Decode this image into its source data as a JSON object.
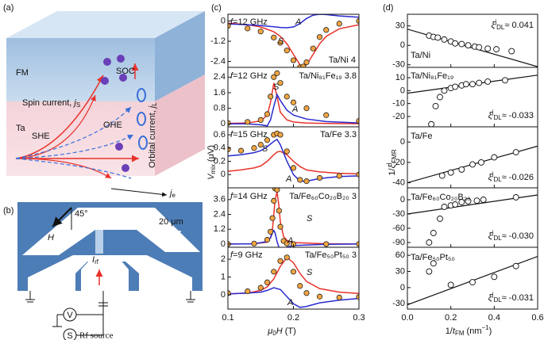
{
  "panel_a": {
    "label": "(a)",
    "fm": "FM",
    "ta": "Ta",
    "soc": "SOC",
    "spin_current": [
      "Spin current, ",
      "j",
      "S"
    ],
    "she": "SHE",
    "ohe": "OHE",
    "orbital_current": [
      "Orbital current, ",
      "j",
      "L"
    ],
    "je": [
      "j",
      "e"
    ]
  },
  "panel_b": {
    "label": "(b)",
    "angle": "45°",
    "field": "H",
    "scale": "20 μm",
    "current": [
      "I",
      "rf"
    ],
    "voltmeter": "V",
    "source_symbol": "S",
    "source": "Rf source"
  },
  "panel_c": {
    "label": "(c)",
    "ylabel": [
      "V",
      "mix",
      " (μV)"
    ],
    "xlabel": [
      "μ",
      "0",
      "H",
      " (T)"
    ]
  },
  "panel_d": {
    "label": "(d)",
    "ylabel": [
      "1/",
      "ξ",
      "j",
      "FMR"
    ],
    "xlabel": [
      "1/",
      "t",
      "FM",
      " (nm",
      "−1",
      ")"
    ]
  },
  "chart_data": [
    {
      "type": "line",
      "title": "Ta/Ni 4",
      "frequency": [
        "f",
        "=12 GHz"
      ],
      "xlim": [
        0.1,
        0.3
      ],
      "xticks": [
        0.1,
        0.2,
        0.3
      ],
      "ylim": [
        -2.75,
        0.4
      ],
      "yticks": [
        0,
        -1.2,
        -2.4
      ],
      "x": [
        0.1,
        0.13,
        0.15,
        0.17,
        0.18,
        0.19,
        0.2,
        0.21,
        0.215,
        0.22,
        0.23,
        0.24,
        0.25,
        0.27,
        0.3
      ],
      "series": [
        {
          "name": "S",
          "color": "#e8322a",
          "values": [
            -0.12,
            -0.22,
            -0.35,
            -0.64,
            -0.91,
            -1.35,
            -1.98,
            -2.6,
            -2.7,
            -2.6,
            -1.98,
            -1.35,
            -0.91,
            -0.46,
            -0.22
          ]
        },
        {
          "name": "A",
          "color": "#2a2ad0",
          "values": [
            -0.17,
            -0.22,
            -0.27,
            -0.34,
            -0.38,
            -0.4,
            -0.35,
            -0.15,
            0,
            0.15,
            0.35,
            0.4,
            0.38,
            0.3,
            0.22
          ]
        },
        {
          "color": "#f2a541",
          "marker": "circle",
          "values": [
            -0.29,
            -0.44,
            -0.62,
            -0.98,
            -1.29,
            -1.75,
            -2.33,
            -2.75,
            -2.7,
            -2.45,
            -1.63,
            -0.95,
            -0.53,
            -0.16,
            0
          ]
        }
      ]
    },
    {
      "type": "line",
      "title": "Ta/Ni₈₁Fe₁₉ 3.8",
      "frequency": [
        "f",
        "=12 GHz"
      ],
      "xlim": [
        0.1,
        0.3
      ],
      "xticks": [
        0.1,
        0.2,
        0.3
      ],
      "ylim": [
        -0.15,
        2.9
      ],
      "yticks": [
        0,
        0.8,
        1.6,
        2.4
      ],
      "x": [
        0.1,
        0.13,
        0.15,
        0.16,
        0.165,
        0.17,
        0.175,
        0.18,
        0.19,
        0.2,
        0.22,
        0.25,
        0.3
      ],
      "series": [
        {
          "name": "S",
          "color": "#e8322a",
          "values": [
            0.02,
            0.05,
            0.15,
            0.45,
            1.1,
            2.1,
            1.4,
            0.6,
            0.2,
            0.1,
            0.04,
            0.02,
            0.01
          ]
        },
        {
          "name": "A",
          "color": "#2a2ad0",
          "values": [
            0,
            0,
            -0.05,
            -0.1,
            0.2,
            0.9,
            1.5,
            1.2,
            0.7,
            0.45,
            0.25,
            0.12,
            0.05
          ]
        },
        {
          "color": "#f2a541",
          "marker": "circle",
          "values": [
            0.05,
            0.1,
            0.2,
            0.5,
            1.4,
            2.4,
            2.6,
            2.1,
            1.4,
            1.1,
            0.8,
            0.45,
            0.15
          ]
        }
      ]
    },
    {
      "type": "line",
      "title": "Ta/Fe 3.3",
      "frequency": [
        "f",
        "=15 GHz"
      ],
      "xlim": [
        0.1,
        0.3
      ],
      "xticks": [
        0.1,
        0.2,
        0.3
      ],
      "ylim": [
        -0.2,
        0.72
      ],
      "yticks": [
        0,
        0.2,
        0.4,
        0.6
      ],
      "x": [
        0.1,
        0.12,
        0.14,
        0.15,
        0.16,
        0.17,
        0.175,
        0.18,
        0.19,
        0.2,
        0.21,
        0.22,
        0.24,
        0.27,
        0.3
      ],
      "series": [
        {
          "name": "S",
          "color": "#e8322a",
          "values": [
            0.05,
            0.07,
            0.1,
            0.13,
            0.2,
            0.3,
            0.34,
            0.35,
            0.3,
            0.2,
            0.12,
            0.07,
            0.04,
            0.02,
            0.01
          ]
        },
        {
          "name": "A",
          "color": "#2a2ad0",
          "values": [
            0.28,
            0.3,
            0.33,
            0.36,
            0.42,
            0.5,
            0.53,
            0.45,
            0.2,
            0,
            -0.1,
            -0.1,
            -0.06,
            -0.03,
            -0.02
          ]
        },
        {
          "color": "#f2a541",
          "marker": "circle",
          "values": [
            0.38,
            0.36,
            0.4,
            0.45,
            0.52,
            0.6,
            0.62,
            0.6,
            0.35,
            0.1,
            -0.08,
            -0.1,
            -0.05,
            -0.02,
            0
          ]
        }
      ]
    },
    {
      "type": "line",
      "title": "Ta/Fe₆₀Co₂₀B₂₀ 3",
      "frequency": [
        "f",
        "=14 GHz"
      ],
      "xlim": [
        0.1,
        0.3
      ],
      "xticks": [
        0.1,
        0.2,
        0.3
      ],
      "ylim": [
        -0.26,
        4.55
      ],
      "yticks": [
        0,
        1.2,
        2.4,
        3.6
      ],
      "x": [
        0.1,
        0.14,
        0.16,
        0.165,
        0.168,
        0.17,
        0.172,
        0.175,
        0.178,
        0.18,
        0.185,
        0.19,
        0.2,
        0.25,
        0.3
      ],
      "series": [
        {
          "name": "S",
          "color": "#e8322a",
          "values": [
            0,
            0.02,
            0.15,
            0.5,
            1.2,
            2.4,
            3.6,
            4.2,
            3,
            1.8,
            0.6,
            0.3,
            0.12,
            0.02,
            0.01
          ]
        },
        {
          "name": "A",
          "color": "#2a2ad0",
          "values": [
            0,
            0.02,
            0.2,
            0.5,
            0.9,
            1.1,
            0.9,
            0.2,
            -0.3,
            -0.4,
            -0.35,
            -0.25,
            -0.12,
            -0.02,
            0
          ]
        },
        {
          "color": "#f2a541",
          "marker": "circle",
          "values": [
            0,
            0.04,
            0.35,
            1,
            2.1,
            3.5,
            4.5,
            4.4,
            2.7,
            1.4,
            0.25,
            0.05,
            0,
            0,
            0.01
          ]
        }
      ]
    },
    {
      "type": "line",
      "title": "Ta/Fe₅₀Pt₅₀ 3",
      "frequency": [
        "f",
        "=9 GHz"
      ],
      "xlim": [
        0.1,
        0.3
      ],
      "xticks": [
        0.1,
        0.2,
        0.3
      ],
      "ylim": [
        -0.8,
        2.67
      ],
      "yticks": [
        0,
        1,
        2
      ],
      "x": [
        0.1,
        0.13,
        0.15,
        0.16,
        0.17,
        0.18,
        0.19,
        0.2,
        0.21,
        0.22,
        0.24,
        0.27,
        0.3
      ],
      "series": [
        {
          "name": "S",
          "color": "#e8322a",
          "values": [
            0.05,
            0.1,
            0.25,
            0.45,
            0.9,
            1.6,
            2.1,
            1.8,
            1.2,
            0.75,
            0.35,
            0.15,
            0.08
          ]
        },
        {
          "name": "A",
          "color": "#2a2ad0",
          "values": [
            0.05,
            0.1,
            0.15,
            0.25,
            0.4,
            0.3,
            -0.1,
            -0.5,
            -0.7,
            -0.65,
            -0.45,
            -0.3,
            -0.2
          ]
        },
        {
          "color": "#f2a541",
          "marker": "circle",
          "values": [
            0.1,
            0.2,
            0.4,
            0.7,
            1.3,
            1.9,
            2.1,
            1.3,
            0.5,
            0.1,
            -0.1,
            -0.15,
            -0.12
          ]
        }
      ]
    },
    {
      "type": "scatter",
      "title": "Ta/Ni",
      "annotation": [
        "ξ",
        "j",
        "DL",
        "≈ 0.041"
      ],
      "xlim": [
        0,
        0.6
      ],
      "xticks": [
        {
          "value": 0,
          "label": "0.0"
        },
        0.2,
        0.4,
        0.6
      ],
      "ylim": [
        -34,
        48
      ],
      "yticks": [
        30,
        0,
        -30
      ],
      "x": [
        0.1,
        0.12,
        0.14,
        0.17,
        0.2,
        0.22,
        0.25,
        0.28,
        0.31,
        0.33,
        0.37,
        0.41,
        0.48
      ],
      "values": [
        15,
        13,
        12,
        9,
        6,
        3,
        2,
        0,
        -2,
        -3,
        -5,
        -6,
        -9
      ],
      "fit": {
        "x": [
          0,
          0.6
        ],
        "values": [
          25,
          -33
        ]
      }
    },
    {
      "type": "scatter",
      "title": "Ta/Ni₈₁Fe₁₉",
      "annotation": [
        "ξ",
        "j",
        "DL",
        "≈ -0.033"
      ],
      "xlim": [
        0,
        0.6
      ],
      "xticks": [
        {
          "value": 0,
          "label": "0.0"
        },
        0.2,
        0.4,
        0.6
      ],
      "ylim": [
        -28,
        18
      ],
      "yticks": [
        10,
        0,
        -10,
        -20
      ],
      "x": [
        0.11,
        0.13,
        0.15,
        0.17,
        0.2,
        0.22,
        0.25,
        0.27,
        0.3,
        0.33,
        0.37,
        0.45
      ],
      "values": [
        -26,
        -12,
        -5,
        0,
        2,
        3,
        4,
        5,
        5,
        6,
        7,
        8
      ],
      "fit": {
        "x": [
          0,
          0.6
        ],
        "values": [
          -2,
          12
        ]
      }
    },
    {
      "type": "scatter",
      "title": "Ta/Fe",
      "annotation": [
        "ξ",
        "j",
        "DL",
        "≈ -0.026"
      ],
      "xlim": [
        0,
        0.6
      ],
      "xticks": [
        {
          "value": 0,
          "label": "0.0"
        },
        0.2,
        0.4,
        0.6
      ],
      "ylim": [
        -45,
        15
      ],
      "yticks": [
        0,
        -20,
        -40
      ],
      "x": [
        0.16,
        0.2,
        0.25,
        0.3,
        0.34,
        0.4,
        0.5
      ],
      "values": [
        -33,
        -30,
        -27,
        -22,
        -20,
        -15,
        -10
      ],
      "fit": {
        "x": [
          0,
          0.6
        ],
        "values": [
          -40,
          -4
        ]
      }
    },
    {
      "type": "scatter",
      "title": "Ta/Fe₆₀Co₂₀B₂₀",
      "annotation": [
        "ξ",
        "j",
        "DL",
        "≈ -0.030"
      ],
      "xlim": [
        0,
        0.6
      ],
      "xticks": [
        {
          "value": 0,
          "label": "0.0"
        },
        0.2,
        0.4,
        0.6
      ],
      "ylim": [
        -100,
        25
      ],
      "yticks": [
        0,
        -30,
        -60,
        -90
      ],
      "x": [
        0.1,
        0.12,
        0.15,
        0.17,
        0.2,
        0.22,
        0.25,
        0.28,
        0.32,
        0.35,
        0.5
      ],
      "values": [
        -90,
        -70,
        -40,
        -15,
        -12,
        -10,
        -5,
        -3,
        -2,
        0,
        5
      ],
      "fit": {
        "x": [
          0,
          0.6
        ],
        "values": [
          -30,
          10
        ]
      }
    },
    {
      "type": "scatter",
      "title": "Ta/Fe₅₀Pt₅₀",
      "annotation": [
        "ξ",
        "j",
        "DL",
        "≈ -0.031"
      ],
      "xlim": [
        0,
        0.6
      ],
      "xticks": [
        {
          "value": 0,
          "label": "0.0"
        },
        0.2,
        0.4,
        0.6
      ],
      "ylim": [
        -40,
        75
      ],
      "yticks": [
        60,
        30,
        0,
        -30
      ],
      "x": [
        0.1,
        0.12,
        0.2,
        0.3,
        0.4,
        0.5
      ],
      "values": [
        30,
        45,
        5,
        10,
        20,
        40
      ],
      "fit": {
        "x": [
          0,
          0.6
        ],
        "values": [
          -32,
          58
        ]
      }
    }
  ]
}
